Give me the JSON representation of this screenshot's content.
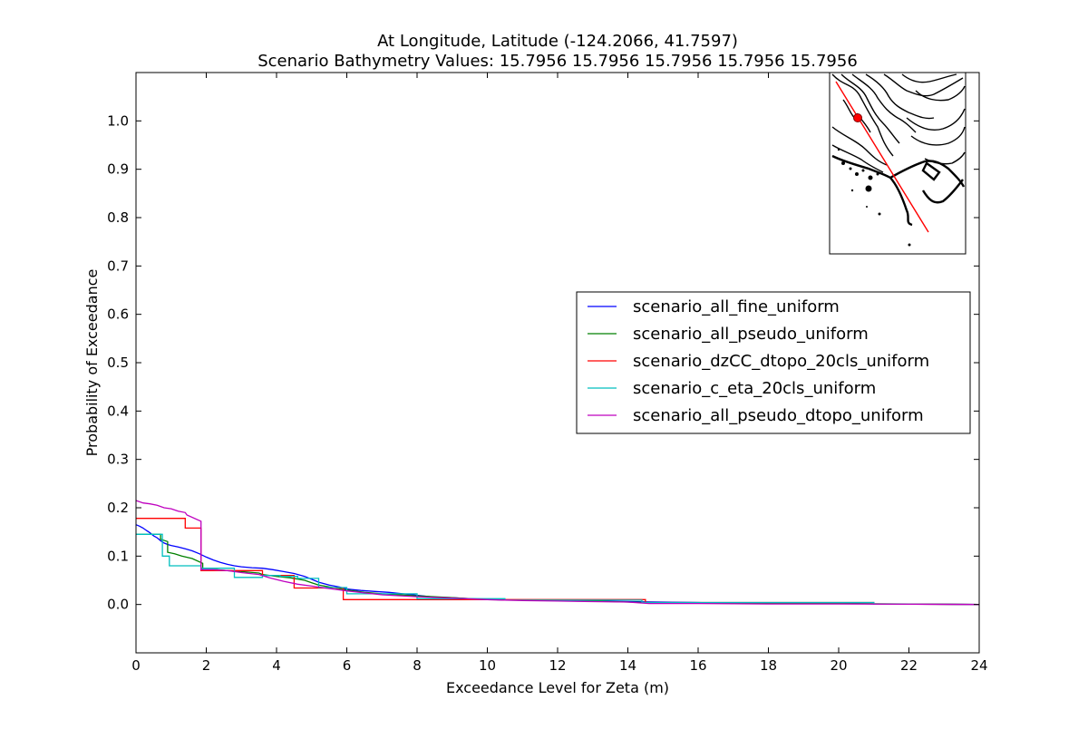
{
  "chart_data": {
    "type": "line",
    "title_line1": "At Longitude, Latitude (-124.2066,  41.7597)",
    "title_line2": "Scenario Bathymetry Values:   15.7956   15.7956   15.7956   15.7956   15.7956",
    "xlabel": "Exceedance Level for Zeta (m)",
    "ylabel": "Probability of Exceedance",
    "xlim": [
      0,
      24
    ],
    "ylim": [
      -0.1,
      1.1
    ],
    "xticks": [
      0,
      2,
      4,
      6,
      8,
      10,
      12,
      14,
      16,
      18,
      20,
      22,
      24
    ],
    "yticks": [
      0.0,
      0.1,
      0.2,
      0.3,
      0.4,
      0.5,
      0.6,
      0.7,
      0.8,
      0.9,
      1.0
    ],
    "ytick_labels": [
      "0.0",
      "0.1",
      "0.2",
      "0.3",
      "0.4",
      "0.5",
      "0.6",
      "0.7",
      "0.8",
      "0.9",
      "1.0"
    ],
    "grid": false,
    "legend_position": "center-right",
    "series": [
      {
        "name": "scenario_all_fine_uniform",
        "color": "#0000ff",
        "points": [
          [
            0,
            0.165
          ],
          [
            0.1,
            0.162
          ],
          [
            0.2,
            0.158
          ],
          [
            0.3,
            0.153
          ],
          [
            0.4,
            0.148
          ],
          [
            0.5,
            0.142
          ],
          [
            0.6,
            0.138
          ],
          [
            0.7,
            0.132
          ],
          [
            0.8,
            0.127
          ],
          [
            0.9,
            0.124
          ],
          [
            1.0,
            0.122
          ],
          [
            1.2,
            0.119
          ],
          [
            1.4,
            0.115
          ],
          [
            1.6,
            0.111
          ],
          [
            1.8,
            0.105
          ],
          [
            2.0,
            0.098
          ],
          [
            2.2,
            0.092
          ],
          [
            2.4,
            0.087
          ],
          [
            2.6,
            0.083
          ],
          [
            2.8,
            0.08
          ],
          [
            3.0,
            0.078
          ],
          [
            3.3,
            0.076
          ],
          [
            3.6,
            0.075
          ],
          [
            3.9,
            0.072
          ],
          [
            4.2,
            0.068
          ],
          [
            4.5,
            0.064
          ],
          [
            4.8,
            0.058
          ],
          [
            5.0,
            0.052
          ],
          [
            5.2,
            0.046
          ],
          [
            5.5,
            0.04
          ],
          [
            5.8,
            0.036
          ],
          [
            6.0,
            0.032
          ],
          [
            6.4,
            0.029
          ],
          [
            6.8,
            0.027
          ],
          [
            7.2,
            0.025
          ],
          [
            7.6,
            0.022
          ],
          [
            8.0,
            0.019
          ],
          [
            8.5,
            0.015
          ],
          [
            9.0,
            0.014
          ],
          [
            9.5,
            0.012
          ],
          [
            10.0,
            0.011
          ],
          [
            10.5,
            0.009
          ],
          [
            11,
            0.009
          ],
          [
            12,
            0.008
          ],
          [
            13,
            0.007
          ],
          [
            14,
            0.006
          ],
          [
            15,
            0.005
          ],
          [
            16,
            0.004
          ],
          [
            16.5,
            0.003
          ],
          [
            18,
            0.003
          ],
          [
            20,
            0.003
          ],
          [
            20.5,
            0.002
          ],
          [
            21,
            0.001
          ],
          [
            22,
            0.001
          ],
          [
            23,
            0.0005
          ],
          [
            24,
            0.0
          ]
        ]
      },
      {
        "name": "scenario_all_pseudo_uniform",
        "color": "#008000",
        "points": [
          [
            0,
            0.145
          ],
          [
            0.7,
            0.145
          ],
          [
            0.7,
            0.135
          ],
          [
            0.9,
            0.13
          ],
          [
            0.9,
            0.108
          ],
          [
            1.1,
            0.105
          ],
          [
            1.3,
            0.1
          ],
          [
            1.6,
            0.095
          ],
          [
            1.9,
            0.085
          ],
          [
            1.9,
            0.072
          ],
          [
            2.3,
            0.072
          ],
          [
            2.6,
            0.07
          ],
          [
            3.0,
            0.068
          ],
          [
            3.5,
            0.065
          ],
          [
            3.6,
            0.062
          ],
          [
            4.0,
            0.058
          ],
          [
            4.4,
            0.055
          ],
          [
            4.8,
            0.05
          ],
          [
            5.0,
            0.045
          ],
          [
            5.2,
            0.04
          ],
          [
            5.6,
            0.035
          ],
          [
            6.0,
            0.03
          ],
          [
            6.5,
            0.025
          ],
          [
            7.0,
            0.022
          ],
          [
            8.0,
            0.018
          ],
          [
            9.0,
            0.014
          ],
          [
            10,
            0.01
          ],
          [
            11,
            0.009
          ],
          [
            12,
            0.008
          ],
          [
            13,
            0.007
          ],
          [
            14,
            0.005
          ],
          [
            14.5,
            0.004
          ],
          [
            16,
            0.003
          ],
          [
            18,
            0.002
          ],
          [
            20,
            0.002
          ],
          [
            22,
            0.001
          ],
          [
            24,
            0.0
          ]
        ]
      },
      {
        "name": "scenario_dzCC_dtopo_20cls_uniform",
        "color": "#ff0000",
        "points": [
          [
            0,
            0.178
          ],
          [
            1.4,
            0.178
          ],
          [
            1.4,
            0.158
          ],
          [
            1.85,
            0.158
          ],
          [
            1.85,
            0.07
          ],
          [
            3.6,
            0.07
          ],
          [
            3.6,
            0.06
          ],
          [
            4.5,
            0.06
          ],
          [
            4.5,
            0.034
          ],
          [
            5.9,
            0.034
          ],
          [
            5.9,
            0.01
          ],
          [
            14.5,
            0.01
          ],
          [
            14.5,
            0.004
          ],
          [
            21,
            0.004
          ],
          [
            21,
            0.001
          ],
          [
            24,
            0.0
          ]
        ]
      },
      {
        "name": "scenario_c_eta_20cls_uniform",
        "color": "#00bfbf",
        "points": [
          [
            0,
            0.145
          ],
          [
            0.75,
            0.145
          ],
          [
            0.75,
            0.1
          ],
          [
            0.95,
            0.1
          ],
          [
            0.95,
            0.08
          ],
          [
            1.85,
            0.08
          ],
          [
            1.85,
            0.075
          ],
          [
            2.8,
            0.075
          ],
          [
            2.8,
            0.056
          ],
          [
            3.6,
            0.056
          ],
          [
            3.6,
            0.06
          ],
          [
            4.1,
            0.06
          ],
          [
            4.1,
            0.058
          ],
          [
            4.6,
            0.058
          ],
          [
            4.6,
            0.054
          ],
          [
            5.2,
            0.054
          ],
          [
            5.2,
            0.035
          ],
          [
            6.0,
            0.035
          ],
          [
            6.0,
            0.022
          ],
          [
            8.0,
            0.022
          ],
          [
            8.0,
            0.012
          ],
          [
            10.5,
            0.012
          ],
          [
            10.5,
            0.009
          ],
          [
            14.4,
            0.009
          ],
          [
            14.4,
            0.004
          ],
          [
            21,
            0.004
          ],
          [
            21,
            0.001
          ],
          [
            24,
            0.0
          ]
        ]
      },
      {
        "name": "scenario_all_pseudo_dtopo_uniform",
        "color": "#bf00bf",
        "points": [
          [
            0,
            0.215
          ],
          [
            0.2,
            0.21
          ],
          [
            0.4,
            0.208
          ],
          [
            0.6,
            0.205
          ],
          [
            0.8,
            0.2
          ],
          [
            1.0,
            0.198
          ],
          [
            1.2,
            0.193
          ],
          [
            1.4,
            0.19
          ],
          [
            1.45,
            0.185
          ],
          [
            1.85,
            0.172
          ],
          [
            1.85,
            0.072
          ],
          [
            2.2,
            0.072
          ],
          [
            2.6,
            0.07
          ],
          [
            3.0,
            0.066
          ],
          [
            3.5,
            0.062
          ],
          [
            3.8,
            0.055
          ],
          [
            4.2,
            0.048
          ],
          [
            4.6,
            0.042
          ],
          [
            5.0,
            0.038
          ],
          [
            5.5,
            0.033
          ],
          [
            6.0,
            0.028
          ],
          [
            6.5,
            0.024
          ],
          [
            7.0,
            0.02
          ],
          [
            8.0,
            0.016
          ],
          [
            9.0,
            0.013
          ],
          [
            10,
            0.01
          ],
          [
            11,
            0.008
          ],
          [
            12,
            0.007
          ],
          [
            13,
            0.006
          ],
          [
            14,
            0.005
          ],
          [
            14.6,
            0.002
          ],
          [
            16,
            0.002
          ],
          [
            18,
            0.001
          ],
          [
            20,
            0.001
          ],
          [
            22,
            0.0005
          ],
          [
            24,
            0.0
          ]
        ]
      }
    ]
  }
}
